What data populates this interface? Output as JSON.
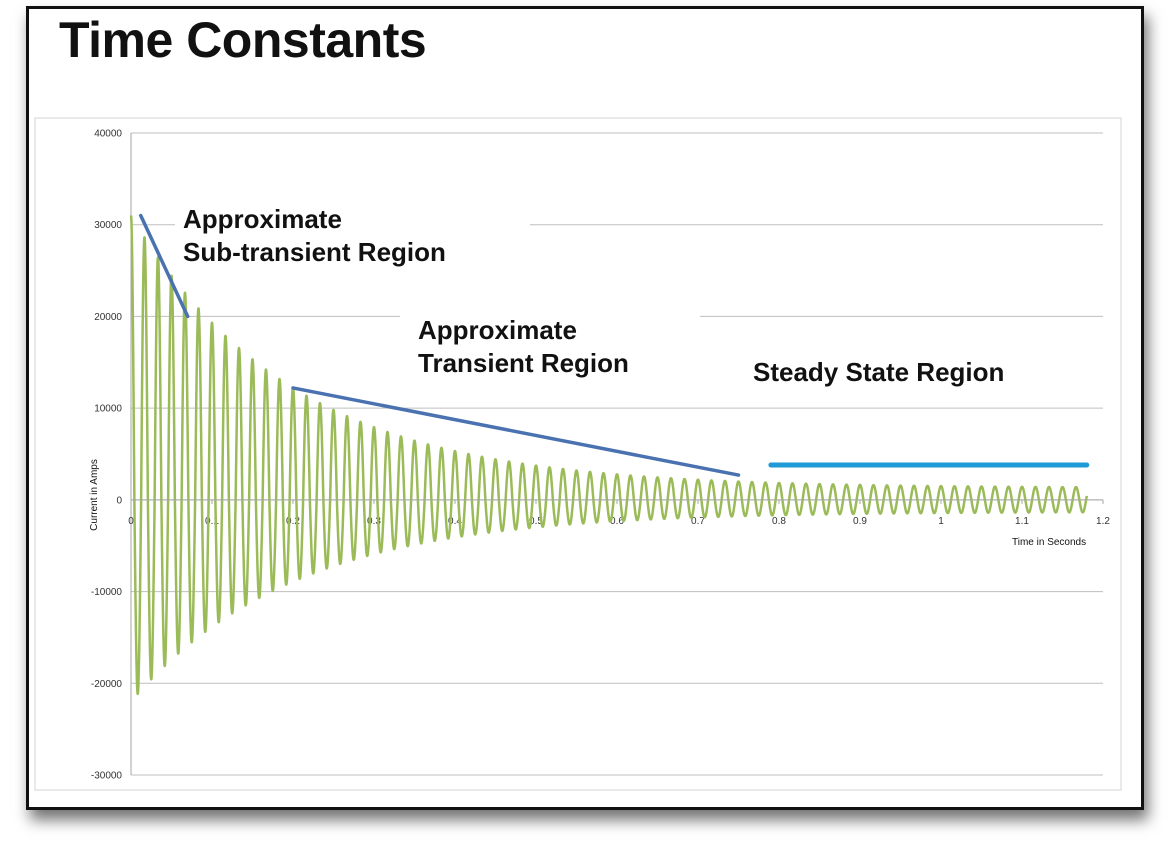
{
  "slide": {
    "title": "Time Constants"
  },
  "chart_data": {
    "type": "line",
    "title": "",
    "xlabel": "Time in Seconds",
    "ylabel": "Current in Amps",
    "xlim": [
      0,
      1.2
    ],
    "ylim": [
      -30000,
      40000
    ],
    "x_ticks": [
      "0",
      "0.1",
      "0.2",
      "0.3",
      "0.4",
      "0.5",
      "0.6",
      "0.7",
      "0.8",
      "0.9",
      "1",
      "1.1",
      "1.2"
    ],
    "y_ticks": [
      "40000",
      "30000",
      "20000",
      "10000",
      "0",
      "-10000",
      "-20000",
      "-30000"
    ],
    "grid": "horizontal",
    "series": [
      {
        "color": "#9bbb59",
        "waveform": "damped-sinusoid",
        "frequency_hz": 60,
        "initial_peak_positive": 31000,
        "initial_peak_negative": -22000,
        "steady_state_amplitude": 1300,
        "x_end": 1.18
      }
    ],
    "annotations": [
      {
        "text_lines": [
          "Approximate",
          "Sub-transient Region"
        ],
        "line_from": [
          0.012,
          31000
        ],
        "line_to": [
          0.07,
          20000
        ],
        "line_color": "#4a72b0"
      },
      {
        "text_lines": [
          "Approximate",
          "Transient Region"
        ],
        "line_from": [
          0.2,
          12200
        ],
        "line_to": [
          0.75,
          2700
        ],
        "line_color": "#4a72b0"
      },
      {
        "text_lines": [
          "Steady State Region"
        ],
        "line_from": [
          0.79,
          3800
        ],
        "line_to": [
          1.18,
          3800
        ],
        "line_color": "#1f9ad6"
      }
    ]
  }
}
